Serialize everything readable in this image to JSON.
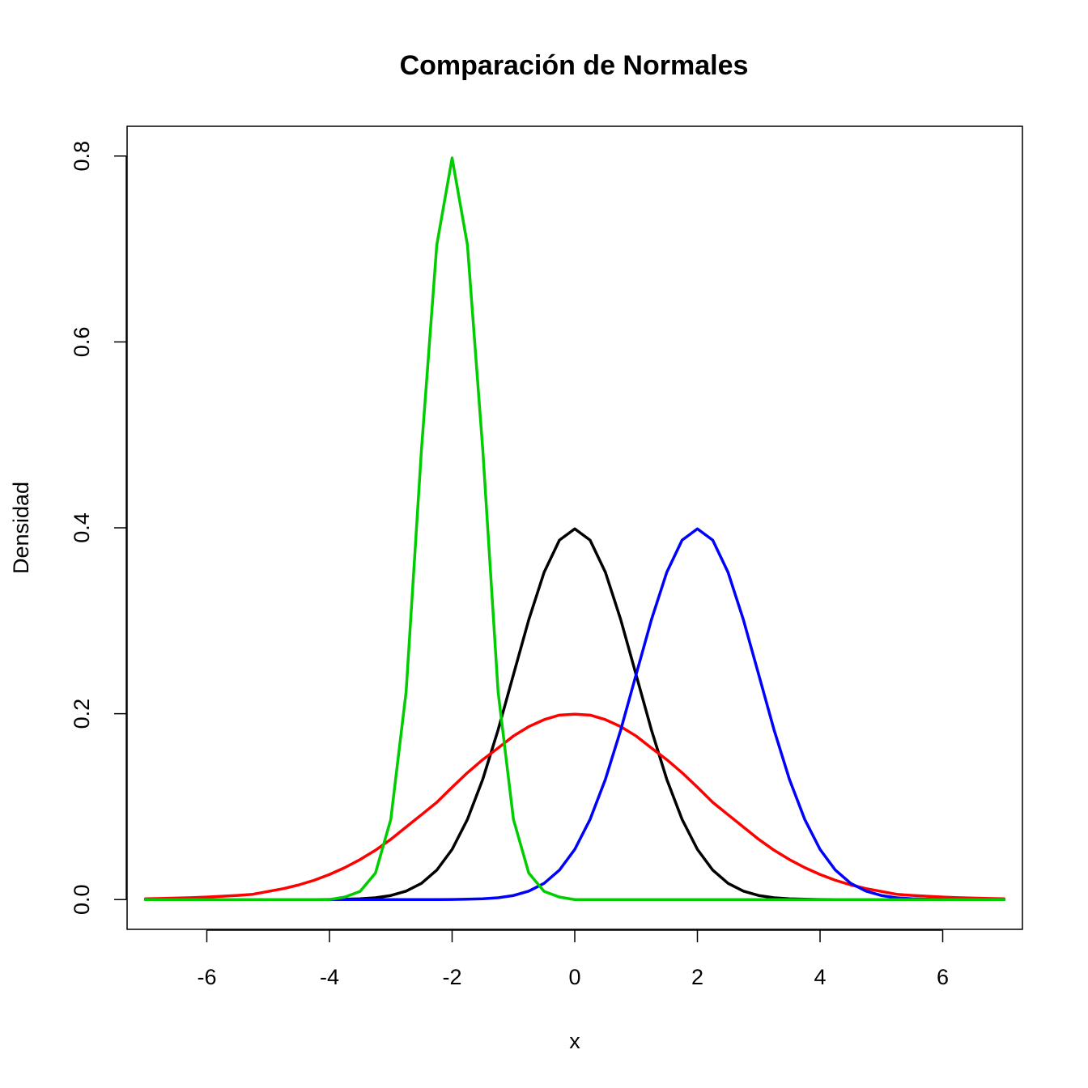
{
  "chart_data": {
    "type": "line",
    "title": "Comparación de Normales",
    "xlabel": "x",
    "ylabel": "Densidad",
    "xlim": [
      -7.3,
      7.3
    ],
    "ylim": [
      -0.032,
      0.832
    ],
    "x_ticks": [
      -6,
      -4,
      -2,
      0,
      2,
      4,
      6
    ],
    "x_tick_labels": [
      "-6",
      "-4",
      "-2",
      "0",
      "2",
      "4",
      "6"
    ],
    "y_ticks": [
      0.0,
      0.2,
      0.4,
      0.6,
      0.8
    ],
    "y_tick_labels": [
      "0.0",
      "0.2",
      "0.4",
      "0.6",
      "0.8"
    ],
    "x_axis_range": [
      -6,
      6
    ],
    "y_axis_range": [
      0.0,
      0.8
    ],
    "x": [
      -7.0,
      -6.75,
      -6.5,
      -6.25,
      -6.0,
      -5.75,
      -5.5,
      -5.25,
      -5.0,
      -4.75,
      -4.5,
      -4.25,
      -4.0,
      -3.75,
      -3.5,
      -3.25,
      -3.0,
      -2.75,
      -2.5,
      -2.25,
      -2.0,
      -1.75,
      -1.5,
      -1.25,
      -1.0,
      -0.75,
      -0.5,
      -0.25,
      0.0,
      0.25,
      0.5,
      0.75,
      1.0,
      1.25,
      1.5,
      1.75,
      2.0,
      2.25,
      2.5,
      2.75,
      3.0,
      3.25,
      3.5,
      3.75,
      4.0,
      4.25,
      4.5,
      4.75,
      5.0,
      5.25,
      5.5,
      5.75,
      6.0,
      6.25,
      6.5,
      6.75,
      7.0
    ],
    "series": [
      {
        "color": "#000000",
        "values": [
          0.0,
          0.0,
          0.0,
          0.0,
          0.0,
          0.0,
          0.0,
          0.0,
          0.0,
          0.0,
          0.0,
          0.0,
          0.0001,
          0.0004,
          0.0009,
          0.002,
          0.0044,
          0.0091,
          0.0175,
          0.0317,
          0.054,
          0.0863,
          0.1295,
          0.1826,
          0.242,
          0.3011,
          0.3521,
          0.3867,
          0.3989,
          0.3867,
          0.3521,
          0.3011,
          0.242,
          0.1826,
          0.1295,
          0.0863,
          0.054,
          0.0317,
          0.0175,
          0.0091,
          0.0044,
          0.002,
          0.0009,
          0.0004,
          0.0001,
          0.0,
          0.0,
          0.0,
          0.0,
          0.0,
          0.0,
          0.0,
          0.0,
          0.0,
          0.0,
          0.0,
          0.0
        ]
      },
      {
        "color": "#ff0000",
        "values": [
          0.0009,
          0.0012,
          0.0016,
          0.0021,
          0.0027,
          0.0036,
          0.0045,
          0.0057,
          0.0088,
          0.0118,
          0.0158,
          0.0208,
          0.027,
          0.0344,
          0.0431,
          0.0531,
          0.0648,
          0.0781,
          0.0913,
          0.1046,
          0.1209,
          0.1365,
          0.1506,
          0.1631,
          0.176,
          0.1861,
          0.1936,
          0.1985,
          0.1995,
          0.1985,
          0.1936,
          0.1861,
          0.176,
          0.1631,
          0.1506,
          0.1365,
          0.1209,
          0.1046,
          0.0913,
          0.0781,
          0.0648,
          0.0531,
          0.0431,
          0.0344,
          0.027,
          0.0208,
          0.0158,
          0.0118,
          0.0088,
          0.0057,
          0.0045,
          0.0036,
          0.0027,
          0.0021,
          0.0016,
          0.0012,
          0.0009
        ]
      },
      {
        "color": "#0000ff",
        "values": [
          0.0,
          0.0,
          0.0,
          0.0,
          0.0,
          0.0,
          0.0,
          0.0,
          0.0,
          0.0,
          0.0,
          0.0,
          0.0,
          0.0,
          0.0,
          0.0,
          0.0,
          0.0,
          0.0,
          0.0,
          0.0001,
          0.0004,
          0.0009,
          0.002,
          0.0044,
          0.0091,
          0.0175,
          0.0317,
          0.054,
          0.0863,
          0.1295,
          0.1826,
          0.242,
          0.3011,
          0.3521,
          0.3867,
          0.3989,
          0.3867,
          0.3521,
          0.3011,
          0.242,
          0.1826,
          0.1295,
          0.0863,
          0.054,
          0.0317,
          0.0175,
          0.0091,
          0.0044,
          0.002,
          0.0009,
          0.0004,
          0.0001,
          0.0,
          0.0,
          0.0,
          0.0
        ]
      },
      {
        "color": "#00cd00",
        "values": [
          0.0,
          0.0,
          0.0,
          0.0,
          0.0,
          0.0,
          0.0,
          0.0,
          0.0,
          0.0,
          0.0,
          0.0,
          0.0,
          0.0027,
          0.0088,
          0.0285,
          0.0863,
          0.2236,
          0.4839,
          0.7042,
          0.7979,
          0.7042,
          0.4839,
          0.2236,
          0.0863,
          0.0285,
          0.0088,
          0.0027,
          0.0,
          0.0,
          0.0,
          0.0,
          0.0,
          0.0,
          0.0,
          0.0,
          0.0,
          0.0,
          0.0,
          0.0,
          0.0,
          0.0,
          0.0,
          0.0,
          0.0,
          0.0,
          0.0,
          0.0,
          0.0,
          0.0,
          0.0,
          0.0,
          0.0,
          0.0,
          0.0,
          0.0,
          0.0
        ]
      }
    ],
    "grid": false,
    "legend": "none"
  }
}
